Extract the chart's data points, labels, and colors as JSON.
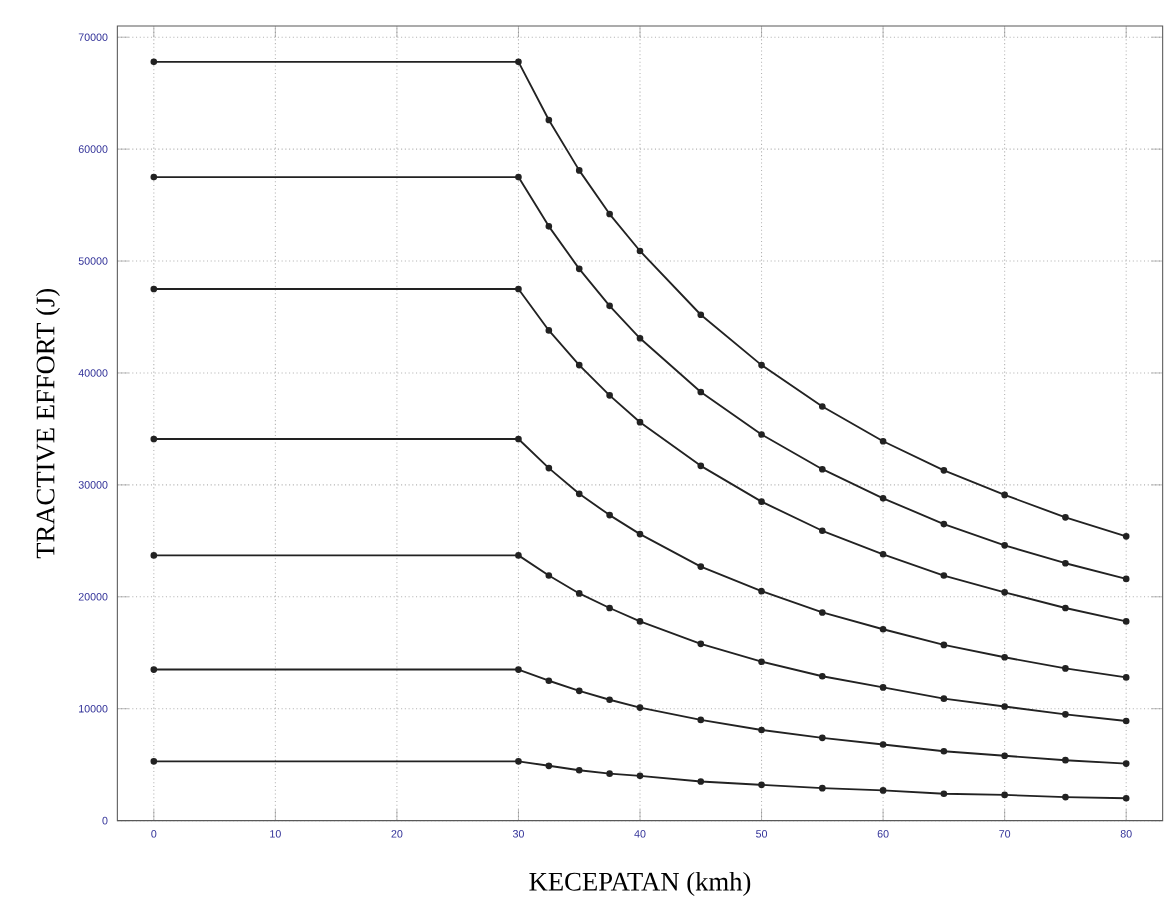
{
  "chart_data": {
    "type": "line",
    "xlabel": "KECEPATAN (kmh)",
    "ylabel": "TRACTIVE EFFORT (J)",
    "x": [
      0,
      30,
      32.5,
      35,
      37.5,
      40,
      45,
      50,
      55,
      60,
      65,
      70,
      75,
      80
    ],
    "series": [
      {
        "color": "#222222",
        "values": [
          67800,
          67800,
          62600,
          58100,
          54200,
          50900,
          45200,
          40700,
          37000,
          33900,
          31300,
          29100,
          27100,
          25400
        ]
      },
      {
        "color": "#222222",
        "values": [
          57500,
          57500,
          53100,
          49300,
          46000,
          43100,
          38300,
          34500,
          31400,
          28800,
          26500,
          24600,
          23000,
          21600
        ]
      },
      {
        "color": "#222222",
        "values": [
          47500,
          47500,
          43800,
          40700,
          38000,
          35600,
          31700,
          28500,
          25900,
          23800,
          21900,
          20400,
          19000,
          17800
        ]
      },
      {
        "color": "#222222",
        "values": [
          34100,
          34100,
          31500,
          29200,
          27300,
          25600,
          22700,
          20500,
          18600,
          17100,
          15700,
          14600,
          13600,
          12800
        ]
      },
      {
        "color": "#222222",
        "values": [
          23700,
          23700,
          21900,
          20300,
          19000,
          17800,
          15800,
          14200,
          12900,
          11900,
          10900,
          10200,
          9500,
          8900
        ]
      },
      {
        "color": "#222222",
        "values": [
          13500,
          13500,
          12500,
          11600,
          10800,
          10100,
          9000,
          8100,
          7400,
          6800,
          6200,
          5800,
          5400,
          5100
        ]
      },
      {
        "color": "#222222",
        "values": [
          5300,
          5300,
          4900,
          4500,
          4200,
          4000,
          3500,
          3200,
          2900,
          2700,
          2400,
          2300,
          2100,
          2000
        ]
      }
    ],
    "xlim": [
      -3,
      83
    ],
    "ylim": [
      0,
      71000
    ],
    "xticks": [
      0,
      10,
      20,
      30,
      40,
      50,
      60,
      70,
      80
    ],
    "yticks": [
      0,
      10000,
      20000,
      30000,
      40000,
      50000,
      60000,
      70000
    ],
    "grid": true,
    "marker": "circle",
    "line_style": "solid"
  }
}
